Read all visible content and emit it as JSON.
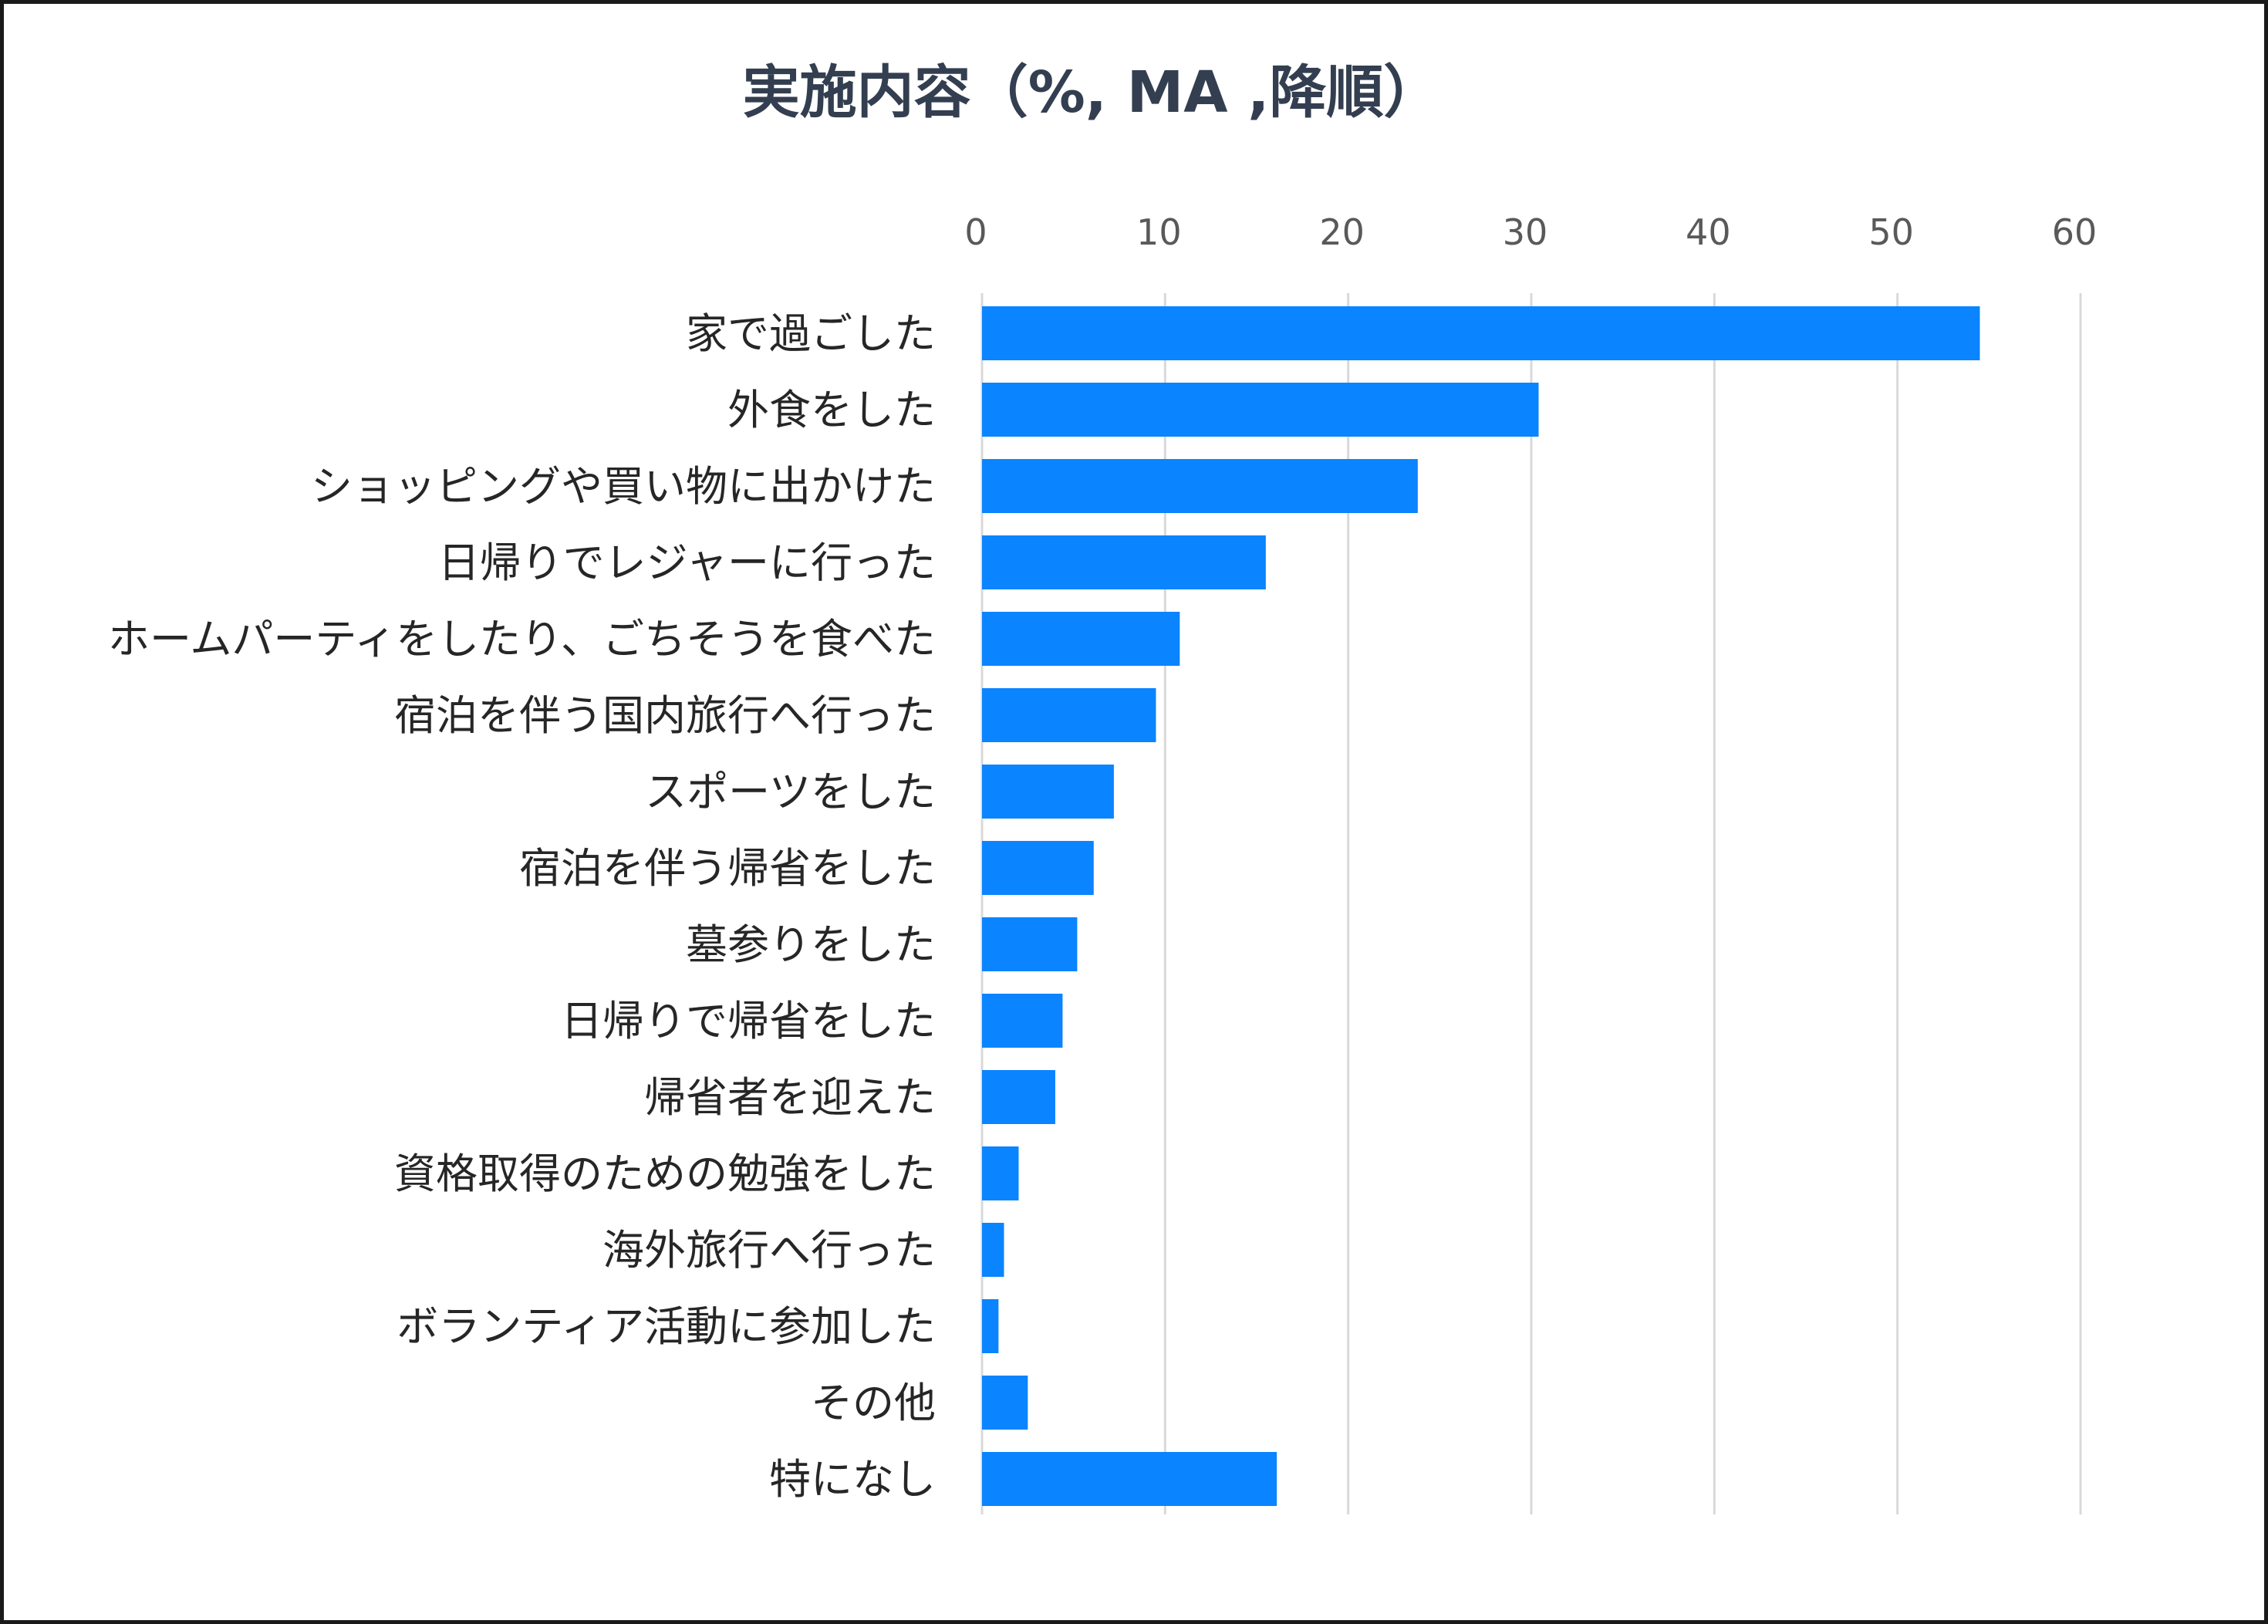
{
  "chart_data": {
    "type": "bar",
    "orientation": "horizontal",
    "title": "実施内容（%, MA ,降順）",
    "xlabel": "",
    "ylabel": "",
    "xlim": [
      0,
      60
    ],
    "ticks": [
      0,
      10,
      20,
      30,
      40,
      50,
      60
    ],
    "tick_labels": [
      "0",
      "10",
      "20",
      "30",
      "40",
      "50",
      "60"
    ],
    "x_axis_position": "top",
    "grid": true,
    "legend": "none",
    "bar_color": "#0a84ff",
    "categories": [
      "家で過ごした",
      "外食をした",
      "ショッピングや買い物に出かけた",
      "日帰りでレジャーに行った",
      "ホームパーティをしたり、ごちそうを食べた",
      "宿泊を伴う国内旅行へ行った",
      "スポーツをした",
      "宿泊を伴う帰省をした",
      "墓参りをした",
      "日帰りで帰省をした",
      "帰省者を迎えた",
      "資格取得のための勉強をした",
      "海外旅行へ行った",
      "ボランティア活動に参加した",
      "その他",
      "特になし"
    ],
    "values": [
      54.5,
      30.4,
      23.8,
      15.5,
      10.8,
      9.5,
      7.2,
      6.1,
      5.2,
      4.4,
      4.0,
      2.0,
      1.2,
      0.9,
      2.5,
      16.1
    ]
  }
}
